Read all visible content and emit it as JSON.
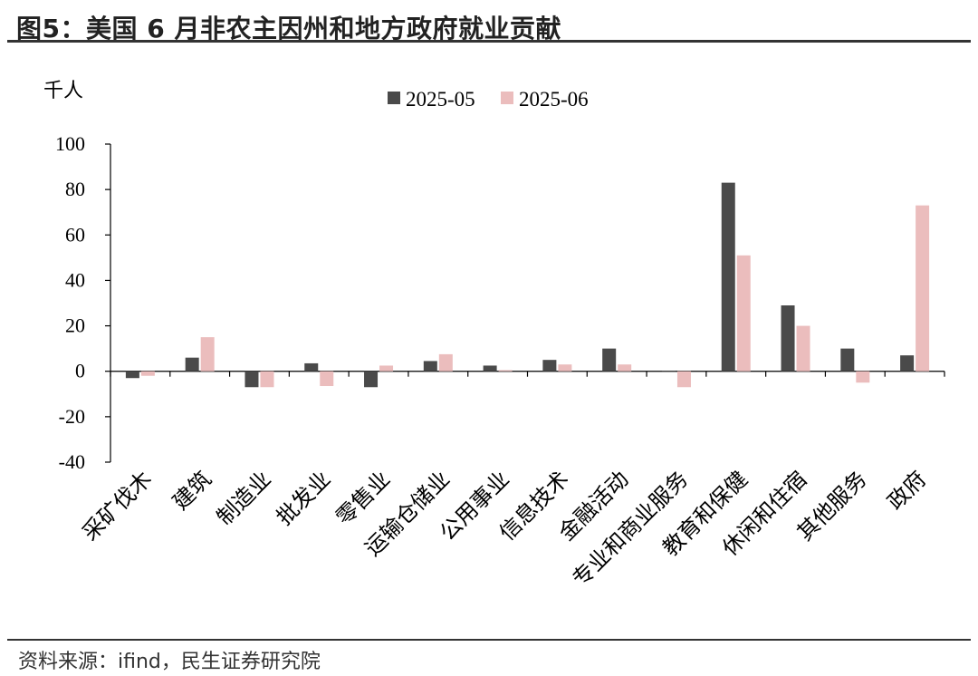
{
  "figure": {
    "title": "图5：美国 6 月非农主因州和地方政府就业贡献",
    "source": "资料来源：ifind，民生证券研究院"
  },
  "colors": {
    "series_2025_05": "#4a4a4a",
    "series_2025_06": "#ebbdbd",
    "axis": "#000000",
    "rule": "#333333"
  },
  "chart_data": {
    "type": "bar",
    "ylabel": "千人",
    "ylim": [
      -40,
      100
    ],
    "yticks": [
      100,
      80,
      60,
      40,
      20,
      0,
      -20,
      -40
    ],
    "grid": false,
    "legend_position": "top",
    "categories": [
      "采矿伐木",
      "建筑",
      "制造业",
      "批发业",
      "零售业",
      "运输仓储业",
      "公用事业",
      "信息技术",
      "金融活动",
      "专业和商业服务",
      "教育和保健",
      "休闲和住宿",
      "其他服务",
      "政府"
    ],
    "series": [
      {
        "name": "2025-05",
        "values": [
          -3,
          6,
          -7,
          3.5,
          -7,
          4.5,
          2.5,
          5,
          10,
          0,
          83,
          29,
          10,
          7
        ]
      },
      {
        "name": "2025-06",
        "values": [
          -2,
          15,
          -7,
          -6.5,
          2.5,
          7.5,
          0.5,
          3,
          3,
          -7,
          51,
          20,
          -5,
          73
        ]
      }
    ]
  }
}
